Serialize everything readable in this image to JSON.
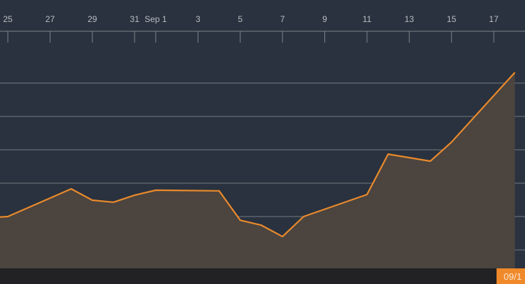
{
  "chart_data": {
    "type": "area",
    "title": "",
    "xlabel": "",
    "ylabel": "",
    "x_tick_labels": [
      "25",
      "27",
      "29",
      "31",
      "Sep 1",
      "3",
      "5",
      "7",
      "9",
      "11",
      "13",
      "15",
      "17"
    ],
    "x_tick_dates": [
      "Aug 25",
      "Aug 27",
      "Aug 29",
      "Aug 31",
      "Sep 1",
      "Sep 3",
      "Sep 5",
      "Sep 7",
      "Sep 9",
      "Sep 11",
      "Sep 13",
      "Sep 15",
      "Sep 17"
    ],
    "x_axis_position": "top",
    "grid": true,
    "y_gridlines": [
      0,
      1,
      2,
      3,
      4,
      5
    ],
    "ylim": [
      -0.55,
      5.6
    ],
    "series": [
      {
        "x": [
          "Aug 24",
          "Aug 25",
          "Aug 28",
          "Aug 29",
          "Aug 30",
          "Aug 31",
          "Sep 1",
          "Sep 4",
          "Sep 5",
          "Sep 6",
          "Sep 7",
          "Sep 8",
          "Sep 11",
          "Sep 12",
          "Sep 14",
          "Sep 15",
          "Sep 18"
        ],
        "values": [
          0.96,
          1.0,
          1.83,
          1.49,
          1.43,
          1.64,
          1.79,
          1.77,
          0.89,
          0.74,
          0.4,
          1.0,
          1.66,
          2.87,
          2.66,
          3.23,
          5.32
        ]
      }
    ],
    "colors": {
      "line": "#e8892c",
      "fill": "#4b443f",
      "background": "#29323e",
      "grid": "#737a82"
    }
  },
  "footer": {
    "crosshair_label": "09/1"
  }
}
